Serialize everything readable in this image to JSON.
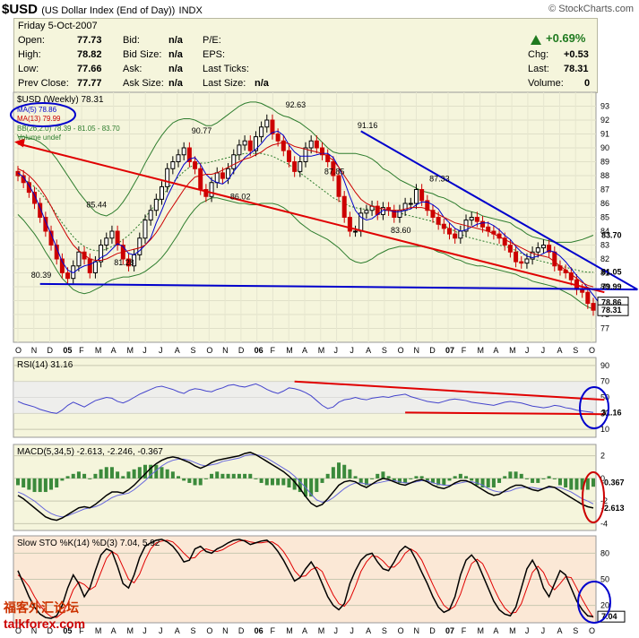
{
  "header": {
    "symbol": "$USD",
    "name": "(US Dollar Index (End of Day))",
    "exchange": "INDX",
    "brand": "© StockCharts.com"
  },
  "quote": {
    "date": "Friday  5-Oct-2007",
    "rows": [
      {
        "label": "Open:",
        "value": "77.73"
      },
      {
        "label": "High:",
        "value": "78.82"
      },
      {
        "label": "Low:",
        "value": "77.66"
      },
      {
        "label": "Prev Close:",
        "value": "77.77"
      }
    ],
    "mid": [
      {
        "label": "Bid:",
        "value": "n/a"
      },
      {
        "label": "Bid Size:",
        "value": "n/a"
      },
      {
        "label": "Ask:",
        "value": "n/a"
      },
      {
        "label": "Ask Size:",
        "value": "n/a"
      }
    ],
    "right": [
      "P/E:",
      "EPS:",
      "Last Ticks:"
    ],
    "last_size": {
      "label": "Last Size:",
      "value": "n/a"
    },
    "pct_change": "+0.69%",
    "stats": [
      {
        "label": "Chg:",
        "value": "+0.53"
      },
      {
        "label": "Last:",
        "value": "78.31"
      },
      {
        "label": "Volume:",
        "value": "0"
      }
    ]
  },
  "watermark": {
    "line1": "福客外汇论坛",
    "line2": "talkforex.com"
  },
  "chart_data": [
    {
      "type": "candlestick",
      "legend": [
        "$USD (Weekly) 78.31",
        "MA(5) 78.86",
        "MA(13) 79.99",
        "BB(26,2.0) 78.39 - 81.05 - 83.70",
        "Volume undef"
      ],
      "colors": {
        "price_up": "#000000",
        "price_down": "#cc0000",
        "ma5": "#0000cc",
        "ma13": "#cc0000",
        "bb": "#2e7d2e",
        "trend_red": "#e00000",
        "trend_blue": "#0000cc",
        "circle": "#0000cc"
      },
      "ylim": [
        76,
        94
      ],
      "yticks": [
        "93",
        "92",
        "91",
        "90",
        "89",
        "88",
        "87",
        "86",
        "85",
        "84",
        "83",
        "82",
        "81",
        "80",
        "79",
        "78",
        "77"
      ],
      "x_labels": [
        "O",
        "N",
        "D",
        "05",
        "F",
        "M",
        "A",
        "M",
        "J",
        "J",
        "A",
        "S",
        "O",
        "N",
        "D",
        "06",
        "F",
        "M",
        "A",
        "M",
        "J",
        "J",
        "A",
        "S",
        "O",
        "N",
        "D",
        "07",
        "F",
        "M",
        "A",
        "M",
        "J",
        "J",
        "A",
        "S",
        "O"
      ],
      "bold_x_labels": [
        "05",
        "06",
        "07"
      ],
      "annotations": [
        {
          "text": "80.39",
          "x": 4,
          "y": 80.39
        },
        {
          "text": "85.44",
          "x": 14,
          "y": 85.44
        },
        {
          "text": "81.28",
          "x": 19,
          "y": 81.28
        },
        {
          "text": "90.77",
          "x": 33,
          "y": 90.77
        },
        {
          "text": "86.02",
          "x": 40,
          "y": 86.02
        },
        {
          "text": "92.63",
          "x": 50,
          "y": 92.63
        },
        {
          "text": "87.85",
          "x": 57,
          "y": 87.85
        },
        {
          "text": "91.16",
          "x": 63,
          "y": 91.16
        },
        {
          "text": "83.60",
          "x": 69,
          "y": 83.6
        },
        {
          "text": "87.33",
          "x": 76,
          "y": 87.33
        }
      ],
      "right_labels": [
        {
          "text": "83.70",
          "y": 83.7,
          "style": "plain"
        },
        {
          "text": "81.05",
          "y": 81.05,
          "style": "plain"
        },
        {
          "text": "79.99",
          "y": 79.99,
          "style": "plain"
        },
        {
          "text": "78.86",
          "y": 78.86,
          "style": "boxed"
        },
        {
          "text": "78.31",
          "y": 78.31,
          "style": "boxed"
        }
      ],
      "close": [
        88.0,
        87.5,
        86.8,
        86.0,
        85.0,
        84.0,
        83.0,
        82.0,
        81.0,
        80.6,
        81.5,
        82.5,
        82.0,
        81.0,
        81.8,
        83.0,
        83.5,
        84.0,
        83.0,
        82.0,
        81.5,
        82.3,
        83.5,
        84.8,
        85.5,
        86.3,
        87.2,
        88.5,
        89.0,
        89.5,
        90.0,
        89.0,
        88.5,
        87.0,
        86.5,
        87.5,
        88.2,
        87.8,
        88.5,
        89.5,
        90.2,
        90.5,
        89.8,
        90.8,
        91.5,
        92.0,
        91.0,
        90.5,
        89.8,
        89.0,
        88.3,
        89.0,
        90.0,
        90.5,
        90.0,
        89.5,
        89.0,
        88.0,
        86.5,
        85.0,
        84.0,
        84.0,
        85.3,
        85.5,
        85.8,
        85.2,
        85.7,
        85.5,
        85.0,
        85.5,
        86.0,
        86.0,
        87.0,
        86.2,
        85.5,
        85.0,
        84.5,
        84.2,
        83.8,
        83.5,
        84.0,
        84.8,
        85.0,
        84.7,
        84.3,
        84.0,
        83.8,
        83.5,
        83.0,
        82.5,
        81.8,
        81.7,
        82.0,
        82.5,
        82.8,
        83.0,
        82.5,
        81.5,
        81.2,
        81.0,
        80.5,
        79.8,
        79.6,
        78.8,
        78.31
      ],
      "ma5": [
        88.2,
        87.9,
        87.3,
        86.6,
        85.7,
        84.7,
        83.8,
        82.8,
        81.8,
        81.2,
        81.0,
        81.3,
        81.5,
        81.6,
        81.8,
        82.1,
        82.3,
        82.7,
        83.1,
        82.9,
        82.4,
        82.3,
        82.6,
        83.0,
        83.5,
        84.6,
        85.5,
        86.5,
        87.3,
        88.1,
        88.8,
        89.2,
        89.3,
        88.8,
        88.1,
        87.7,
        87.5,
        87.4,
        87.7,
        88.3,
        88.8,
        89.3,
        89.6,
        89.9,
        90.3,
        90.8,
        91.1,
        91.2,
        90.9,
        90.2,
        89.7,
        89.4,
        89.4,
        89.4,
        89.5,
        89.6,
        89.6,
        89.3,
        88.6,
        87.6,
        86.5,
        85.5,
        85.0,
        84.8,
        84.9,
        85.2,
        85.5,
        85.5,
        85.4,
        85.4,
        85.5,
        85.6,
        85.9,
        86.1,
        86.1,
        85.9,
        85.6,
        85.0,
        84.6,
        84.2,
        84.0,
        84.1,
        84.3,
        84.5,
        84.6,
        84.6,
        84.4,
        84.1,
        83.7,
        83.4,
        82.9,
        82.5,
        82.2,
        82.1,
        82.2,
        82.4,
        82.6,
        82.5,
        82.2,
        81.8,
        81.3,
        80.8,
        80.4,
        79.9,
        79.4,
        78.86
      ],
      "ma13": [
        88.5,
        88.3,
        88.0,
        87.6,
        87.1,
        86.5,
        85.8,
        85.0,
        84.3,
        83.6,
        83.0,
        82.6,
        82.3,
        82.0,
        81.9,
        81.9,
        82.0,
        82.2,
        82.4,
        82.5,
        82.6,
        82.7,
        82.8,
        83.0,
        83.4,
        83.9,
        84.5,
        85.2,
        85.8,
        86.4,
        87.0,
        87.5,
        87.9,
        88.0,
        88.1,
        88.1,
        88.2,
        88.4,
        88.6,
        88.8,
        89.0,
        89.2,
        89.3,
        89.5,
        89.7,
        90.0,
        90.2,
        90.3,
        90.4,
        90.3,
        90.1,
        90.0,
        89.9,
        89.8,
        89.7,
        89.6,
        89.4,
        89.1,
        88.6,
        88.0,
        87.4,
        86.8,
        86.3,
        86.0,
        85.8,
        85.7,
        85.6,
        85.5,
        85.5,
        85.5,
        85.6,
        85.7,
        85.7,
        85.7,
        85.6,
        85.4,
        85.2,
        85.0,
        84.8,
        84.6,
        84.5,
        84.4,
        84.3,
        84.2,
        84.1,
        84.0,
        83.8,
        83.6,
        83.4,
        83.2,
        83.0,
        82.8,
        82.6,
        82.4,
        82.3,
        82.2,
        82.1,
        81.8,
        81.5,
        81.2,
        80.9,
        80.6,
        80.3,
        80.1,
        79.99
      ],
      "bb_mid": [
        88.0,
        87.8,
        87.5,
        87.2,
        86.8,
        86.3,
        85.8,
        85.2,
        84.6,
        84.1,
        83.6,
        83.2,
        82.9,
        82.7,
        82.6,
        82.6,
        82.7,
        82.9,
        83.1,
        83.4,
        83.7,
        84.1,
        84.5,
        85.0,
        85.5,
        86.0,
        86.5,
        87.0,
        87.5,
        87.9,
        88.3,
        88.6,
        88.8,
        88.9,
        88.9,
        89.0,
        89.1,
        89.2,
        89.3,
        89.4,
        89.5,
        89.6,
        89.6,
        89.6,
        89.6,
        89.5,
        89.4,
        89.2,
        89.0,
        88.8,
        88.5,
        88.2,
        87.9,
        87.6,
        87.3,
        87.0,
        86.7,
        86.4,
        86.2,
        86.0,
        85.8,
        85.7,
        85.6,
        85.6,
        85.6,
        85.6,
        85.5,
        85.5,
        85.4,
        85.3,
        85.2,
        85.1,
        85.0,
        84.9,
        84.8,
        84.7,
        84.5,
        84.4,
        84.2,
        84.0,
        83.8,
        83.6,
        83.5,
        83.4,
        83.3,
        83.2,
        83.1,
        83.0,
        82.9,
        82.8,
        82.6,
        82.4,
        82.2,
        82.0,
        81.9,
        81.8,
        81.7,
        81.6,
        81.5,
        81.4,
        81.3,
        81.2,
        81.1,
        81.05,
        81.05
      ],
      "bb_width": [
        2.8,
        3.0,
        3.2,
        3.4,
        3.6,
        3.8,
        3.9,
        4.0,
        4.0,
        3.9,
        3.8,
        3.6,
        3.4,
        3.1,
        2.8,
        2.6,
        2.4,
        2.4,
        2.5,
        2.7,
        3.0,
        3.3,
        3.6,
        3.9,
        4.1,
        4.3,
        4.4,
        4.4,
        4.3,
        4.1,
        3.8,
        3.5,
        3.2,
        2.9,
        2.7,
        2.6,
        2.7,
        2.9,
        3.1,
        3.3,
        3.5,
        3.6,
        3.7,
        3.7,
        3.6,
        3.5,
        3.4,
        3.3,
        3.3,
        3.4,
        3.5,
        3.6,
        3.6,
        3.6,
        3.5,
        3.4,
        3.3,
        3.3,
        3.4,
        3.6,
        3.8,
        3.9,
        3.9,
        3.8,
        3.6,
        3.3,
        3.0,
        2.8,
        2.6,
        2.4,
        2.3,
        2.2,
        2.1,
        2.0,
        2.0,
        2.0,
        2.0,
        2.0,
        2.0,
        2.0,
        1.9,
        1.9,
        1.9,
        1.9,
        1.8,
        1.8,
        1.8,
        1.8,
        1.8,
        1.8,
        1.7,
        1.7,
        1.6,
        1.6,
        1.6,
        1.6,
        1.6,
        1.6,
        1.7,
        1.8,
        1.9,
        2.1,
        2.3,
        2.5,
        2.66
      ],
      "trendlines": [
        {
          "color": "red",
          "from": [
            0,
            90.3
          ],
          "to": [
            106,
            79.6
          ],
          "arrow_start": true
        },
        {
          "color": "blue",
          "from": [
            62,
            91.2
          ],
          "to": [
            112,
            79.8
          ]
        },
        {
          "color": "blue",
          "from": [
            4,
            80.2
          ],
          "to": [
            112,
            79.8
          ]
        }
      ]
    },
    {
      "type": "line",
      "legend": "RSI(14) 31.16",
      "ylim": [
        0,
        100
      ],
      "yticks": [
        "90",
        "70",
        "50",
        "30",
        "10"
      ],
      "right_label": "31.16",
      "values": [
        45,
        42,
        40,
        38,
        35,
        33,
        31,
        30,
        34,
        40,
        44,
        41,
        38,
        42,
        46,
        48,
        50,
        49,
        45,
        43,
        46,
        50,
        54,
        57,
        60,
        63,
        64,
        62,
        60,
        57,
        55,
        59,
        61,
        60,
        58,
        57,
        60,
        62,
        65,
        66,
        64,
        63,
        65,
        67,
        64,
        60,
        57,
        55,
        58,
        62,
        61,
        59,
        56,
        52,
        46,
        40,
        36,
        38,
        44,
        47,
        48,
        50,
        48,
        47,
        49,
        50,
        51,
        50,
        52,
        53,
        54,
        51,
        49,
        47,
        45,
        44,
        43,
        45,
        47,
        48,
        47,
        46,
        44,
        43,
        42,
        41,
        40,
        42,
        44,
        45,
        44,
        43,
        41,
        39,
        38,
        37,
        38,
        40,
        39,
        37,
        36,
        34,
        33,
        32,
        31.16
      ],
      "trendlines": [
        {
          "color": "red",
          "from": [
            50,
            70
          ],
          "to": [
            106,
            47
          ]
        },
        {
          "color": "red",
          "from": [
            70,
            31
          ],
          "to": [
            106,
            29
          ]
        }
      ]
    },
    {
      "type": "line",
      "legend": "MACD(5,34,5) -2.613, -2.246, -0.367",
      "ylim": [
        -4.6,
        3.0
      ],
      "yticks": [
        "2",
        "0",
        "-2",
        "-4"
      ],
      "right_labels": [
        "-0.367",
        "-2.613"
      ],
      "macd": [
        -1.5,
        -1.8,
        -2.2,
        -2.6,
        -3.0,
        -3.4,
        -3.6,
        -3.7,
        -3.5,
        -3.2,
        -2.9,
        -2.6,
        -2.5,
        -2.6,
        -2.3,
        -1.9,
        -1.5,
        -1.2,
        -1.2,
        -1.3,
        -1.0,
        -0.6,
        -0.1,
        0.4,
        0.9,
        1.3,
        1.6,
        1.8,
        1.9,
        1.8,
        1.6,
        1.4,
        1.1,
        0.9,
        1.1,
        1.4,
        1.6,
        1.7,
        1.8,
        1.9,
        2.0,
        2.2,
        2.3,
        2.1,
        1.8,
        1.5,
        1.2,
        0.9,
        0.6,
        0.2,
        -0.3,
        -0.9,
        -1.6,
        -2.2,
        -2.5,
        -2.3,
        -1.8,
        -1.2,
        -0.6,
        -0.3,
        -0.2,
        -0.3,
        -0.6,
        -0.8,
        -0.5,
        -0.2,
        0.0,
        -0.1,
        -0.3,
        -0.5,
        -0.6,
        -0.4,
        -0.2,
        -0.1,
        -0.3,
        -0.6,
        -0.8,
        -0.9,
        -0.7,
        -0.4,
        -0.2,
        -0.2,
        -0.4,
        -0.7,
        -1.0,
        -1.3,
        -1.5,
        -1.4,
        -1.1,
        -0.8,
        -0.6,
        -0.6,
        -0.8,
        -1.0,
        -1.1,
        -0.9,
        -0.7,
        -0.8,
        -1.1,
        -1.4,
        -1.7,
        -2.0,
        -2.3,
        -2.5,
        -2.613
      ],
      "signal": [
        -1.2,
        -1.4,
        -1.7,
        -2.0,
        -2.4,
        -2.8,
        -3.1,
        -3.3,
        -3.4,
        -3.3,
        -3.1,
        -2.9,
        -2.7,
        -2.6,
        -2.5,
        -2.3,
        -2.0,
        -1.7,
        -1.5,
        -1.4,
        -1.3,
        -1.0,
        -0.6,
        -0.2,
        0.3,
        0.7,
        1.1,
        1.4,
        1.6,
        1.7,
        1.7,
        1.6,
        1.4,
        1.2,
        1.1,
        1.2,
        1.3,
        1.5,
        1.6,
        1.7,
        1.8,
        2.0,
        2.1,
        2.1,
        2.0,
        1.8,
        1.5,
        1.2,
        0.9,
        0.6,
        0.2,
        -0.3,
        -0.8,
        -1.4,
        -1.9,
        -2.1,
        -2.0,
        -1.7,
        -1.3,
        -0.9,
        -0.6,
        -0.4,
        -0.4,
        -0.5,
        -0.5,
        -0.4,
        -0.3,
        -0.2,
        -0.2,
        -0.3,
        -0.4,
        -0.4,
        -0.3,
        -0.2,
        -0.2,
        -0.4,
        -0.5,
        -0.6,
        -0.6,
        -0.5,
        -0.4,
        -0.3,
        -0.3,
        -0.4,
        -0.6,
        -0.9,
        -1.1,
        -1.2,
        -1.2,
        -1.1,
        -0.9,
        -0.8,
        -0.8,
        -0.8,
        -0.9,
        -0.9,
        -0.8,
        -0.8,
        -0.8,
        -1.0,
        -1.2,
        -1.5,
        -1.8,
        -2.0,
        -2.246
      ]
    },
    {
      "type": "line",
      "legend": "Slow STO %K(14) %D(3) 7.04, 5.92",
      "ylim": [
        0,
        100
      ],
      "yticks": [
        "80",
        "50",
        "20"
      ],
      "right_label": "7.04",
      "k": [
        60,
        45,
        30,
        18,
        10,
        6,
        5,
        8,
        20,
        40,
        55,
        45,
        30,
        40,
        60,
        78,
        85,
        82,
        65,
        45,
        40,
        55,
        75,
        88,
        92,
        95,
        96,
        93,
        88,
        80,
        70,
        72,
        85,
        88,
        82,
        80,
        85,
        88,
        92,
        95,
        96,
        94,
        90,
        92,
        94,
        95,
        90,
        82,
        72,
        60,
        48,
        52,
        62,
        70,
        60,
        45,
        30,
        20,
        15,
        22,
        45,
        60,
        72,
        78,
        80,
        70,
        62,
        60,
        70,
        82,
        88,
        84,
        72,
        58,
        45,
        30,
        18,
        12,
        15,
        30,
        55,
        72,
        78,
        70,
        55,
        40,
        25,
        15,
        10,
        8,
        18,
        40,
        62,
        72,
        60,
        40,
        30,
        45,
        60,
        55,
        40,
        25,
        15,
        8,
        7.04
      ],
      "d": [
        55,
        50,
        42,
        30,
        20,
        12,
        7,
        6,
        11,
        22,
        38,
        47,
        44,
        38,
        42,
        58,
        74,
        82,
        78,
        64,
        50,
        46,
        56,
        72,
        85,
        92,
        94,
        95,
        93,
        87,
        80,
        74,
        75,
        82,
        85,
        83,
        82,
        84,
        88,
        91,
        94,
        95,
        93,
        92,
        92,
        93,
        93,
        89,
        82,
        72,
        60,
        53,
        54,
        61,
        64,
        59,
        45,
        32,
        22,
        19,
        27,
        42,
        59,
        70,
        77,
        76,
        71,
        64,
        64,
        70,
        80,
        85,
        81,
        72,
        58,
        44,
        31,
        20,
        15,
        19,
        33,
        52,
        68,
        73,
        68,
        55,
        40,
        27,
        17,
        11,
        12,
        22,
        40,
        58,
        65,
        58,
        44,
        38,
        45,
        53,
        52,
        40,
        27,
        16,
        5.92
      ]
    }
  ]
}
